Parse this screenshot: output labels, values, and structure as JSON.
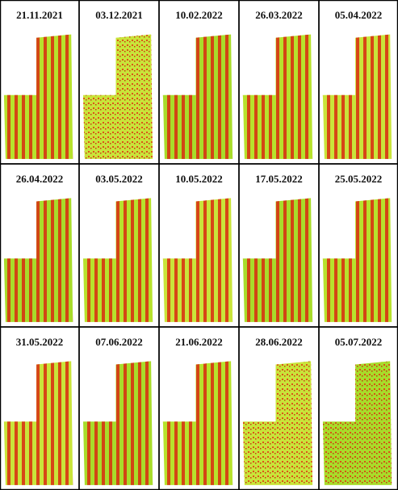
{
  "panels": [
    {
      "date": "21.11.2021"
    },
    {
      "date": "03.12.2021"
    },
    {
      "date": "10.02.2022"
    },
    {
      "date": "26.03.2022"
    },
    {
      "date": "05.04.2022"
    },
    {
      "date": "26.04.2022"
    },
    {
      "date": "03.05.2022"
    },
    {
      "date": "10.05.2022"
    },
    {
      "date": "17.05.2022"
    },
    {
      "date": "25.05.2022"
    },
    {
      "date": "31.05.2022"
    },
    {
      "date": "07.06.2022"
    },
    {
      "date": "21.06.2022"
    },
    {
      "date": "28.06.2022"
    },
    {
      "date": "05.07.2022"
    }
  ]
}
